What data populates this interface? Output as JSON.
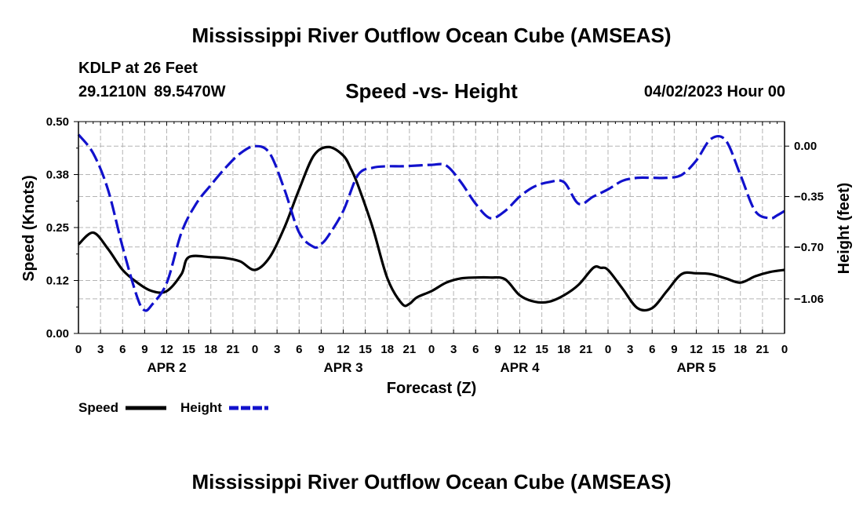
{
  "header": {
    "title": "Mississippi River Outflow Ocean Cube (AMSEAS)",
    "station": "KDLP at 26 Feet",
    "coordinates": "29.1210N  89.5470W",
    "subtitle": "Speed -vs- Height",
    "run_date": "04/02/2023 Hour 00"
  },
  "footer": {
    "title": "Mississippi River Outflow Ocean Cube (AMSEAS)"
  },
  "chart_data": {
    "type": "line",
    "title": "Speed -vs- Height",
    "xlabel": "Forecast (Z)",
    "ylabel_left": "Speed (Knots)",
    "ylabel_right": "Height (feet)",
    "x_range_hours": [
      0,
      96
    ],
    "x_tick_step_hours": 3,
    "x_tick_labels": [
      "0",
      "3",
      "6",
      "9",
      "12",
      "15",
      "18",
      "21",
      "0",
      "3",
      "6",
      "9",
      "12",
      "15",
      "18",
      "21",
      "0",
      "3",
      "6",
      "9",
      "12",
      "15",
      "18",
      "21",
      "0",
      "3",
      "6",
      "9",
      "12",
      "15",
      "18",
      "21",
      "0"
    ],
    "day_labels": [
      {
        "label": "APR 2",
        "hour": 12
      },
      {
        "label": "APR 3",
        "hour": 36
      },
      {
        "label": "APR 4",
        "hour": 60
      },
      {
        "label": "APR 5",
        "hour": 84
      }
    ],
    "ylim_left": [
      0,
      0.5
    ],
    "yticks_left": [
      {
        "value": 0,
        "label": "0.00"
      },
      {
        "value": 0.125,
        "label": "0.12"
      },
      {
        "value": 0.25,
        "label": "0.25"
      },
      {
        "value": 0.375,
        "label": "0.38"
      },
      {
        "value": 0.5,
        "label": "0.50"
      }
    ],
    "ylim_right": [
      -1.3,
      0.17
    ],
    "yticks_right": [
      {
        "value": 0,
        "label": "0.00"
      },
      {
        "value": -0.35,
        "label": "−0.35"
      },
      {
        "value": -0.7,
        "label": "−0.70"
      },
      {
        "value": -1.06,
        "label": "−1.06"
      }
    ],
    "grid": true,
    "legend": [
      {
        "name": "Speed",
        "color": "#000000",
        "style": "solid"
      },
      {
        "name": "Height",
        "color": "#1111cc",
        "style": "dashed"
      }
    ],
    "series": [
      {
        "name": "Speed",
        "axis": "left",
        "color": "#000000",
        "dash": "solid",
        "x": [
          0,
          2,
          4,
          6,
          8,
          10,
          12,
          14,
          15,
          18,
          20,
          22,
          24,
          26,
          28,
          30,
          32,
          34,
          36,
          37,
          38,
          40,
          42,
          44,
          45,
          46,
          48,
          50,
          52,
          54,
          56,
          58,
          60,
          62,
          64,
          66,
          68,
          70,
          71,
          72,
          74,
          76,
          78,
          80,
          82,
          84,
          86,
          88,
          90,
          92,
          94,
          96
        ],
        "y": [
          0.21,
          0.238,
          0.2,
          0.15,
          0.12,
          0.1,
          0.1,
          0.14,
          0.18,
          0.18,
          0.178,
          0.17,
          0.15,
          0.18,
          0.25,
          0.34,
          0.42,
          0.44,
          0.42,
          0.39,
          0.35,
          0.25,
          0.13,
          0.07,
          0.07,
          0.085,
          0.1,
          0.12,
          0.13,
          0.132,
          0.132,
          0.128,
          0.09,
          0.075,
          0.075,
          0.09,
          0.115,
          0.155,
          0.155,
          0.15,
          0.105,
          0.06,
          0.06,
          0.1,
          0.14,
          0.142,
          0.14,
          0.13,
          0.12,
          0.135,
          0.145,
          0.15
        ]
      },
      {
        "name": "Height",
        "axis": "right",
        "color": "#1111cc",
        "dash": "dashed",
        "x": [
          0,
          2,
          4,
          6,
          8,
          9,
          10,
          12,
          14,
          16,
          18,
          20,
          22,
          24,
          26,
          28,
          30,
          32,
          33,
          34,
          36,
          38,
          40,
          42,
          44,
          46,
          48,
          50,
          52,
          54,
          56,
          58,
          60,
          62,
          64,
          66,
          68,
          70,
          72,
          74,
          76,
          78,
          80,
          82,
          84,
          86,
          88,
          90,
          92,
          94,
          95,
          96
        ],
        "y": [
          0.08,
          -0.05,
          -0.3,
          -0.7,
          -1.05,
          -1.14,
          -1.1,
          -0.95,
          -0.6,
          -0.4,
          -0.27,
          -0.15,
          -0.05,
          0.0,
          -0.05,
          -0.3,
          -0.6,
          -0.7,
          -0.68,
          -0.62,
          -0.45,
          -0.2,
          -0.15,
          -0.14,
          -0.14,
          -0.135,
          -0.13,
          -0.135,
          -0.25,
          -0.4,
          -0.5,
          -0.45,
          -0.35,
          -0.28,
          -0.25,
          -0.25,
          -0.4,
          -0.35,
          -0.3,
          -0.24,
          -0.22,
          -0.22,
          -0.22,
          -0.2,
          -0.1,
          0.05,
          0.04,
          -0.2,
          -0.45,
          -0.5,
          -0.48,
          -0.45
        ]
      }
    ]
  }
}
